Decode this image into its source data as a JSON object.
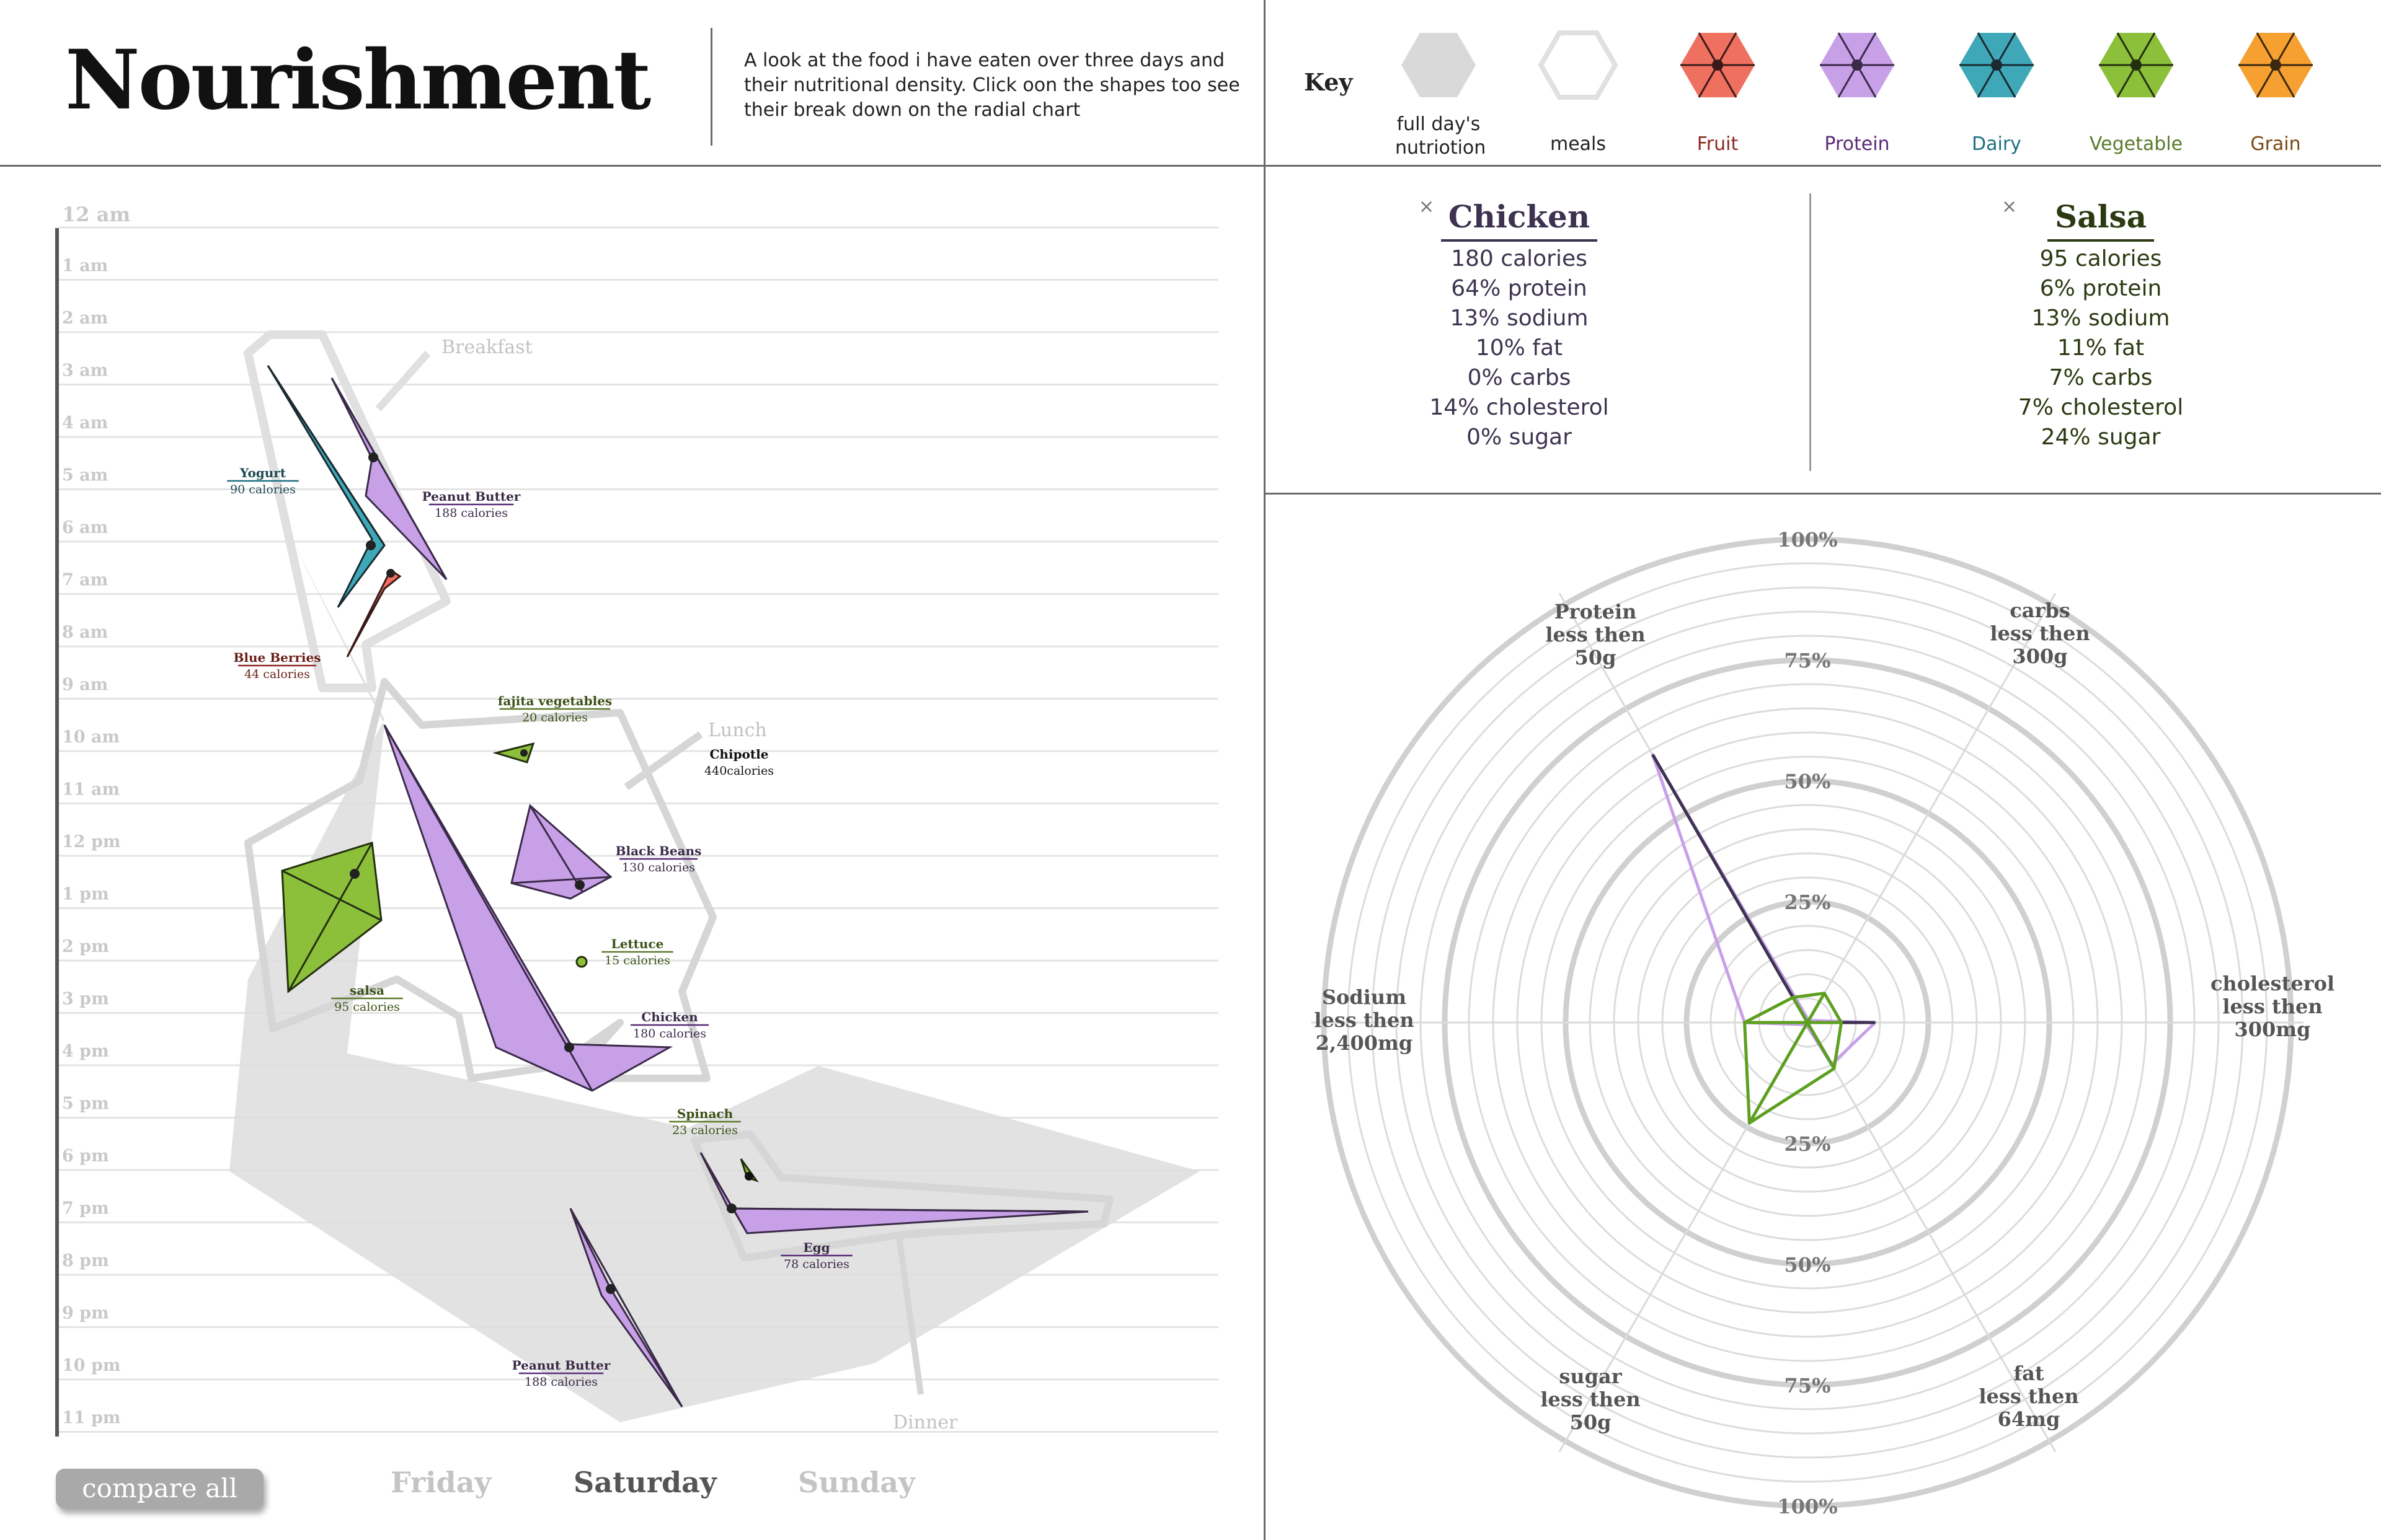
{
  "header": {
    "title": "Nourishment",
    "subtitle": "A look at the food i have eaten over three days and their nutritional density. Click oon the shapes too see their break down on the radial chart"
  },
  "key": {
    "title": "Key",
    "items": [
      {
        "label": "full day's nutriotion",
        "color": "#d9d9d9",
        "stroke": "#d9d9d9",
        "style": "filled",
        "text_color": "#222222"
      },
      {
        "label": "meals",
        "color": "#ffffff",
        "stroke": "#e0e0e0",
        "style": "outline",
        "text_color": "#222222"
      },
      {
        "label": "Fruit",
        "color": "#f07060",
        "stroke": "#3a1a18",
        "style": "spoke",
        "text_color": "#8a2a22"
      },
      {
        "label": "Protein",
        "color": "#c8a0e8",
        "stroke": "#3a2a48",
        "style": "spoke",
        "text_color": "#5a2a78"
      },
      {
        "label": "Dairy",
        "color": "#3fa8b8",
        "stroke": "#1a2a30",
        "style": "spoke",
        "text_color": "#1e6f80"
      },
      {
        "label": "Vegetable",
        "color": "#8cbf3a",
        "stroke": "#23300f",
        "style": "spoke",
        "text_color": "#5a7a2a"
      },
      {
        "label": "Grain",
        "color": "#f5a030",
        "stroke": "#3a2810",
        "style": "spoke",
        "text_color": "#7a4a10"
      }
    ]
  },
  "details": [
    {
      "name": "Chicken",
      "color": "#3d3350",
      "close": "×",
      "lines": [
        "180 calories",
        "64% protein",
        "13% sodium",
        "10% fat",
        "0% carbs",
        "14% cholesterol",
        "0% sugar"
      ]
    },
    {
      "name": "Salsa",
      "color": "#2c3a12",
      "close": "×",
      "lines": [
        "95 calories",
        "6% protein",
        "13% sodium",
        "11% fat",
        "7% carbs",
        "7% cholesterol",
        "24% sugar"
      ]
    }
  ],
  "controls": {
    "compare_label": "compare all",
    "days": [
      {
        "label": "Friday",
        "active": false
      },
      {
        "label": "Saturday",
        "active": true
      },
      {
        "label": "Sunday",
        "active": false
      }
    ]
  },
  "chart_data": [
    {
      "type": "scatter",
      "title": "",
      "y_axis": {
        "ticks": [
          "12 am",
          "1 am",
          "2 am",
          "3 am",
          "4 am",
          "5 am",
          "6 am",
          "7 am",
          "8 am",
          "9 am",
          "10 am",
          "11 am",
          "12 pm",
          "1 pm",
          "2 pm",
          "3 pm",
          "4 pm",
          "5 pm",
          "6 pm",
          "7 pm",
          "8 pm",
          "9 pm",
          "10 pm",
          "11 pm"
        ],
        "range_hours": [
          0,
          23
        ]
      },
      "meal_labels": [
        {
          "label": "Breakfast",
          "hour": 2.5
        },
        {
          "label": "Lunch",
          "hour": 9.8
        },
        {
          "label": "Dinner",
          "hour": 23.0
        }
      ],
      "foods": [
        {
          "name": "Yogurt",
          "calories_label": "90 calories",
          "group": "Dairy",
          "hour": 6.3
        },
        {
          "name": "Peanut Butter",
          "calories_label": "188 calories",
          "group": "Protein",
          "hour": 4.6
        },
        {
          "name": "Blue Berries",
          "calories_label": "44 calories",
          "group": "Fruit",
          "hour": 6.9
        },
        {
          "name": "fajita vegetables",
          "calories_label": "20 calories",
          "group": "Vegetable",
          "hour": 10.3
        },
        {
          "name": "Chipotle",
          "calories_label": "440calories",
          "group": "Meal",
          "hour": 10.5
        },
        {
          "name": "Black Beans",
          "calories_label": "130 calories",
          "group": "Protein",
          "hour": 12.7
        },
        {
          "name": "Lettuce",
          "calories_label": "15 calories",
          "group": "Vegetable",
          "hour": 13.9
        },
        {
          "name": "salsa",
          "calories_label": "95 calories",
          "group": "Vegetable",
          "hour": 12.5
        },
        {
          "name": "Chicken",
          "calories_label": "180 calories",
          "group": "Protein",
          "hour": 15.8
        },
        {
          "name": "Spinach",
          "calories_label": "23 calories",
          "group": "Vegetable",
          "hour": 18.1
        },
        {
          "name": "Egg",
          "calories_label": "78 calories",
          "group": "Protein",
          "hour": 18.9
        },
        {
          "name": "Peanut Butter",
          "calories_label": "188 calories",
          "group": "Protein",
          "hour": 21.5
        }
      ]
    },
    {
      "type": "radar",
      "title": "",
      "axes": [
        {
          "lines": [
            "Protein",
            "less then",
            "50g"
          ]
        },
        {
          "lines": [
            "carbs",
            "less then",
            "300g"
          ]
        },
        {
          "lines": [
            "cholesterol",
            "less then",
            "300mg"
          ]
        },
        {
          "lines": [
            "fat",
            "less then",
            "64mg"
          ]
        },
        {
          "lines": [
            "sugar",
            "less then",
            "50g"
          ]
        },
        {
          "lines": [
            "Sodium",
            "less then",
            "2,400mg"
          ]
        }
      ],
      "upper_ring_labels": [
        "100%",
        "75%",
        "50%",
        "25%"
      ],
      "lower_ring_labels": [
        "25%",
        "50%",
        "75%",
        "100%"
      ],
      "range": [
        0,
        100
      ],
      "series": [
        {
          "name": "Chicken",
          "color": "#3d3350",
          "values": [
            64,
            0,
            14,
            10,
            0,
            13
          ]
        },
        {
          "name": "Salsa",
          "color": "#5d9f1f",
          "values": [
            6,
            7,
            7,
            11,
            24,
            13
          ]
        }
      ]
    }
  ]
}
